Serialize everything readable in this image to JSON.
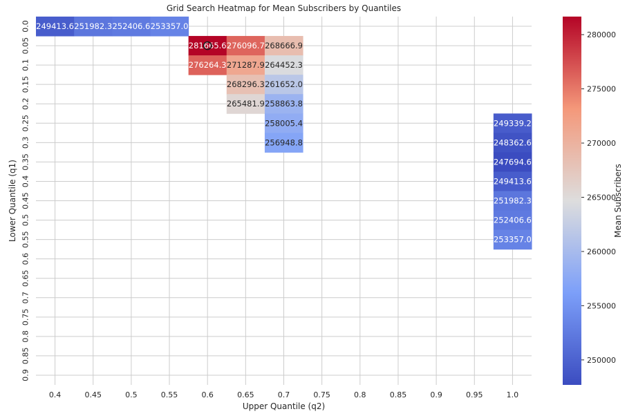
{
  "chart_data": {
    "type": "heatmap",
    "title": "Grid Search Heatmap for Mean Subscribers by Quantiles",
    "xlabel": "Upper Quantile (q2)",
    "ylabel": "Lower Quantile (q1)",
    "x_categories": [
      "0.4",
      "0.45",
      "0.5",
      "0.55",
      "0.6",
      "0.65",
      "0.7",
      "0.75",
      "0.8",
      "0.85",
      "0.9",
      "0.95",
      "1.0"
    ],
    "y_categories": [
      "0.0",
      "0.05",
      "0.1",
      "0.15",
      "0.2",
      "0.25",
      "0.3",
      "0.35",
      "0.4",
      "0.45",
      "0.5",
      "0.55",
      "0.6",
      "0.65",
      "0.7",
      "0.75",
      "0.8",
      "0.85",
      "0.9"
    ],
    "cells": [
      {
        "x": "0.4",
        "y": "0.0",
        "value": 249413.6,
        "label": "249413.6"
      },
      {
        "x": "0.45",
        "y": "0.0",
        "value": 251982.3,
        "label": "251982.3"
      },
      {
        "x": "0.5",
        "y": "0.0",
        "value": 252406.6,
        "label": "252406.6"
      },
      {
        "x": "0.55",
        "y": "0.0",
        "value": 253357.0,
        "label": "253357.0"
      },
      {
        "x": "0.6",
        "y": "0.05",
        "value": 281665.6,
        "label": "281665.6"
      },
      {
        "x": "0.65",
        "y": "0.05",
        "value": 276096.7,
        "label": "276096.7"
      },
      {
        "x": "0.7",
        "y": "0.05",
        "value": 268666.9,
        "label": "268666.9"
      },
      {
        "x": "0.6",
        "y": "0.1",
        "value": 276264.3,
        "label": "276264.3"
      },
      {
        "x": "0.65",
        "y": "0.1",
        "value": 271287.9,
        "label": "271287.9"
      },
      {
        "x": "0.7",
        "y": "0.1",
        "value": 264452.3,
        "label": "264452.3"
      },
      {
        "x": "0.65",
        "y": "0.15",
        "value": 268296.3,
        "label": "268296.3"
      },
      {
        "x": "0.7",
        "y": "0.15",
        "value": 261652.0,
        "label": "261652.0"
      },
      {
        "x": "0.65",
        "y": "0.2",
        "value": 265481.9,
        "label": "265481.9"
      },
      {
        "x": "0.7",
        "y": "0.2",
        "value": 258863.8,
        "label": "258863.8"
      },
      {
        "x": "0.7",
        "y": "0.25",
        "value": 258005.4,
        "label": "258005.4"
      },
      {
        "x": "0.7",
        "y": "0.3",
        "value": 256948.8,
        "label": "256948.8"
      },
      {
        "x": "1.0",
        "y": "0.25",
        "value": 249339.2,
        "label": "249339.2"
      },
      {
        "x": "1.0",
        "y": "0.3",
        "value": 248362.6,
        "label": "248362.6"
      },
      {
        "x": "1.0",
        "y": "0.35",
        "value": 247694.6,
        "label": "247694.6"
      },
      {
        "x": "1.0",
        "y": "0.4",
        "value": 249413.6,
        "label": "249413.6"
      },
      {
        "x": "1.0",
        "y": "0.45",
        "value": 251982.3,
        "label": "251982.3"
      },
      {
        "x": "1.0",
        "y": "0.5",
        "value": 252406.6,
        "label": "252406.6"
      },
      {
        "x": "1.0",
        "y": "0.55",
        "value": 253357.0,
        "label": "253357.0"
      }
    ],
    "highlighted_cell": {
      "x": "0.6",
      "y": "0.05",
      "marker": "circle"
    },
    "colorbar": {
      "label": "Mean Subscribers",
      "vmin": 247694.6,
      "vmax": 281665.6,
      "ticks": [
        "250000",
        "255000",
        "260000",
        "265000",
        "270000",
        "275000",
        "280000"
      ],
      "colormap": "coolwarm"
    },
    "grid": true
  }
}
